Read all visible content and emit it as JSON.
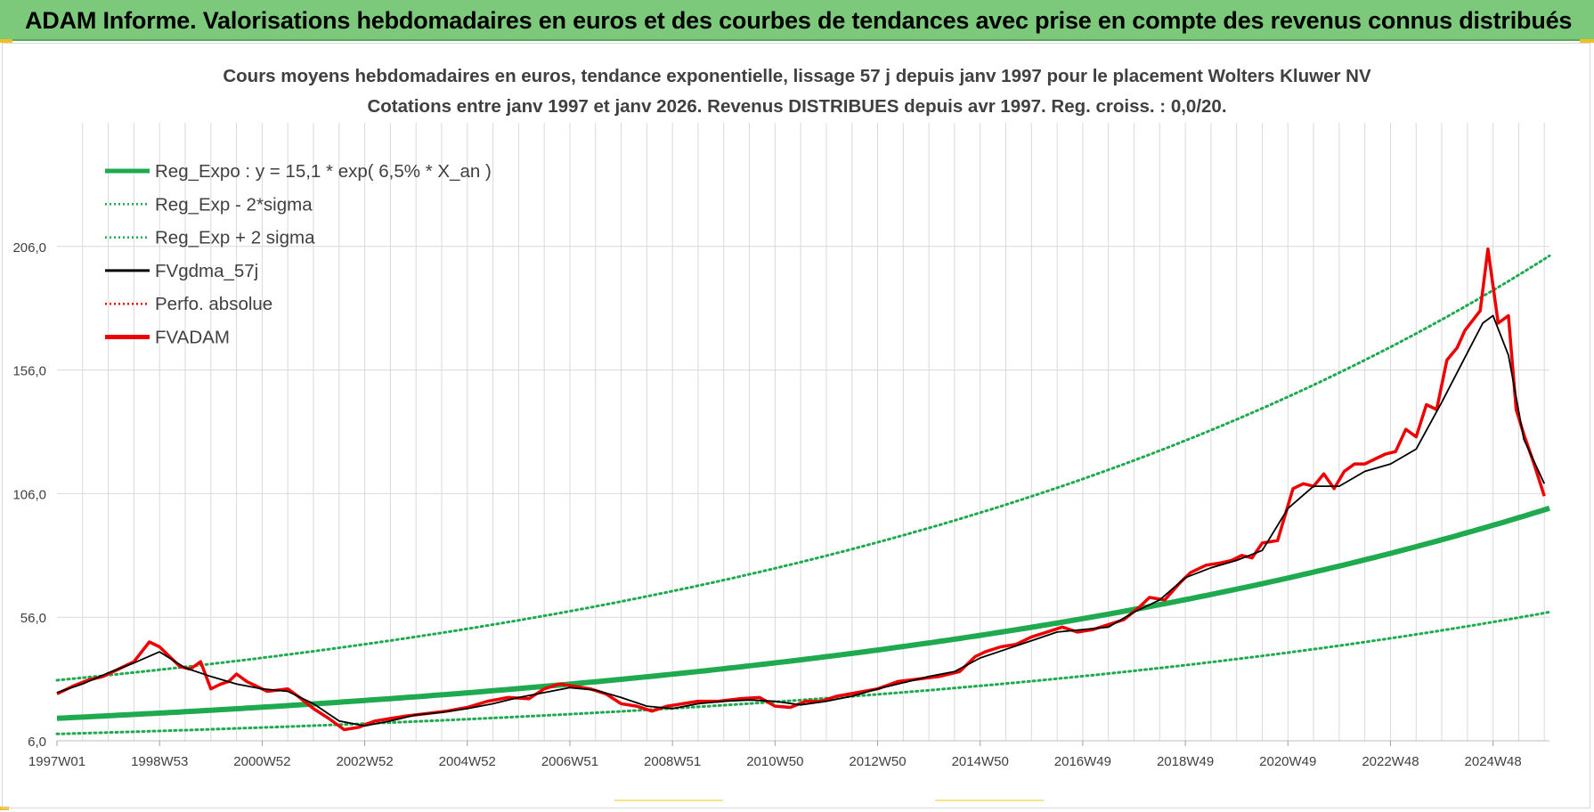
{
  "banner": {
    "title": "ADAM Informe. Valorisations hebdomadaires en euros et des courbes de tendances avec prise en compte des revenus connus distribués"
  },
  "colors": {
    "banner_bg": "#7cc97c",
    "reg_green": "#1faa50",
    "fvadam_red": "#ee0000",
    "gdma_black": "#000000",
    "grid": "#d9d9d9"
  },
  "chart_data": {
    "type": "line",
    "title_line1": "Cours moyens hebdomadaires en euros, tendance exponentielle, lissage 57 j depuis janv 1997  pour le placement Wolters Kluwer NV",
    "title_line2": "Cotations entre janv 1997 et janv 2026. Revenus DISTRIBUES depuis avr 1997. Reg. croiss. : 0,0/20.",
    "y_ticks": [
      "6,0",
      "56,0",
      "106,0",
      "156,0",
      "206,0"
    ],
    "y_tick_values": [
      6,
      56,
      106,
      156,
      206
    ],
    "ylim": [
      6,
      256
    ],
    "x_ticks": [
      "1997W01",
      "1998W53",
      "2000W52",
      "2002W52",
      "2004W52",
      "2006W51",
      "2008W51",
      "2010W50",
      "2012W50",
      "2014W50",
      "2016W49",
      "2018W49",
      "2020W49",
      "2022W48",
      "2024W48"
    ],
    "x_tick_years": [
      1997.0,
      1999.0,
      2001.0,
      2003.0,
      2005.0,
      2007.0,
      2009.0,
      2011.0,
      2013.0,
      2015.0,
      2017.0,
      2019.0,
      2021.0,
      2023.0,
      2025.0
    ],
    "xlim": [
      1997.0,
      2026.1
    ],
    "grid": true,
    "legend_position": "top-left",
    "legend": [
      {
        "label": "Reg_Expo : y = 15,1 * exp( 6,5% *  X_an )",
        "style": "solid-thick",
        "color": "#1faa50"
      },
      {
        "label": "Reg_Exp - 2*sigma",
        "style": "dotted",
        "color": "#1faa50"
      },
      {
        "label": "Reg_Exp + 2 sigma",
        "style": "dotted",
        "color": "#1faa50"
      },
      {
        "label": "FVgdma_57j",
        "style": "solid",
        "color": "#000000"
      },
      {
        "label": "Perfo. absolue",
        "style": "dotted",
        "color": "#ee0000"
      },
      {
        "label": "FVADAM",
        "style": "solid-thick",
        "color": "#ee0000"
      }
    ],
    "regression": {
      "a": 15.1,
      "rate": 0.065,
      "t0": 1997.0,
      "lower_factor": 0.58,
      "upper_factor": 2.02
    },
    "series": [
      {
        "name": "FVADAM",
        "color": "#ee0000",
        "x": [
          1997.0,
          1997.3,
          1997.6,
          1997.9,
          1998.2,
          1998.5,
          1998.8,
          1999.0,
          1999.2,
          1999.4,
          1999.6,
          1999.8,
          2000.0,
          2000.2,
          2000.35,
          2000.5,
          2000.7,
          2000.9,
          2001.1,
          2001.3,
          2001.5,
          2001.7,
          2002.0,
          2002.3,
          2002.6,
          2002.9,
          2003.0,
          2003.2,
          2003.5,
          2003.8,
          2004.2,
          2004.6,
          2005.0,
          2005.4,
          2005.8,
          2006.2,
          2006.5,
          2006.8,
          2007.1,
          2007.4,
          2007.7,
          2008.0,
          2008.3,
          2008.6,
          2008.9,
          2009.2,
          2009.5,
          2009.9,
          2010.3,
          2010.7,
          2011.0,
          2011.3,
          2011.6,
          2011.9,
          2012.2,
          2012.6,
          2013.0,
          2013.4,
          2013.8,
          2014.2,
          2014.6,
          2014.9,
          2015.1,
          2015.4,
          2015.7,
          2016.0,
          2016.3,
          2016.6,
          2016.9,
          2017.2,
          2017.5,
          2017.8,
          2018.1,
          2018.3,
          2018.6,
          2018.9,
          2019.1,
          2019.4,
          2019.7,
          2019.9,
          2020.1,
          2020.3,
          2020.5,
          2020.8,
          2021.1,
          2021.3,
          2021.5,
          2021.7,
          2021.9,
          2022.1,
          2022.3,
          2022.5,
          2022.7,
          2022.9,
          2023.1,
          2023.3,
          2023.5,
          2023.7,
          2023.9,
          2024.1,
          2024.3,
          2024.45,
          2024.6,
          2024.75,
          2024.9,
          2025.1,
          2025.3,
          2025.45,
          2025.6,
          2025.8,
          2026.0
        ],
        "values": [
          25.0,
          28.0,
          30.5,
          32.0,
          35.0,
          38.0,
          46.0,
          44.0,
          40.0,
          36.0,
          35.0,
          38.0,
          27.0,
          29.0,
          30.0,
          33.0,
          30.0,
          28.0,
          26.0,
          26.5,
          27.0,
          24.0,
          19.0,
          15.0,
          10.5,
          11.5,
          12.5,
          14.0,
          15.0,
          16.0,
          17.0,
          18.0,
          19.5,
          22.0,
          23.5,
          23.0,
          27.0,
          29.0,
          28.0,
          27.0,
          25.0,
          21.0,
          20.0,
          18.0,
          20.0,
          21.0,
          22.0,
          22.0,
          23.0,
          23.5,
          20.0,
          19.5,
          22.0,
          22.0,
          24.0,
          25.5,
          27.0,
          30.0,
          31.0,
          32.0,
          34.0,
          40.0,
          42.0,
          44.0,
          45.0,
          48.0,
          50.0,
          52.0,
          50.0,
          51.0,
          53.0,
          55.0,
          60.0,
          64.0,
          63.0,
          70.0,
          74.0,
          77.0,
          78.0,
          79.0,
          81.0,
          80.0,
          86.0,
          87.0,
          108.0,
          110.0,
          109.0,
          114.0,
          108.0,
          115.0,
          118.0,
          118.0,
          120.0,
          122.0,
          123.0,
          132.0,
          129.0,
          142.0,
          140.0,
          160.0,
          165.0,
          172.0,
          176.0,
          180.0,
          205.0,
          175.0,
          178.0,
          140.0,
          130.0,
          118.0,
          105.0
        ]
      },
      {
        "name": "FVgdma_57j",
        "color": "#000000",
        "x": [
          1997.0,
          1997.5,
          1998.0,
          1998.5,
          1999.0,
          1999.5,
          2000.0,
          2000.5,
          2001.0,
          2001.5,
          2002.0,
          2002.5,
          2003.0,
          2003.5,
          2004.0,
          2004.5,
          2005.0,
          2005.5,
          2006.0,
          2006.5,
          2007.0,
          2007.5,
          2008.0,
          2008.5,
          2009.0,
          2009.5,
          2010.0,
          2010.5,
          2011.0,
          2011.5,
          2012.0,
          2012.5,
          2013.0,
          2013.5,
          2014.0,
          2014.5,
          2015.0,
          2015.5,
          2016.0,
          2016.5,
          2017.0,
          2017.5,
          2018.0,
          2018.5,
          2019.0,
          2019.5,
          2020.0,
          2020.5,
          2021.0,
          2021.5,
          2022.0,
          2022.5,
          2023.0,
          2023.5,
          2024.0,
          2024.5,
          2024.8,
          2025.0,
          2025.3,
          2025.6,
          2026.0
        ],
        "values": [
          25.5,
          29.0,
          33.5,
          37.5,
          42.0,
          35.5,
          32.0,
          29.0,
          27.0,
          26.0,
          21.0,
          14.0,
          12.0,
          14.0,
          16.5,
          17.5,
          19.0,
          21.0,
          23.5,
          25.5,
          27.5,
          26.5,
          23.5,
          20.0,
          19.0,
          21.0,
          22.0,
          22.5,
          22.0,
          20.5,
          22.0,
          24.0,
          27.0,
          29.5,
          32.0,
          34.0,
          39.5,
          43.0,
          46.5,
          50.0,
          51.0,
          52.0,
          58.0,
          63.0,
          72.0,
          76.0,
          79.0,
          83.0,
          100.0,
          109.0,
          109.0,
          115.0,
          118.0,
          124.0,
          143.0,
          163.0,
          175.0,
          178.0,
          162.0,
          128.0,
          110.0
        ]
      }
    ]
  }
}
